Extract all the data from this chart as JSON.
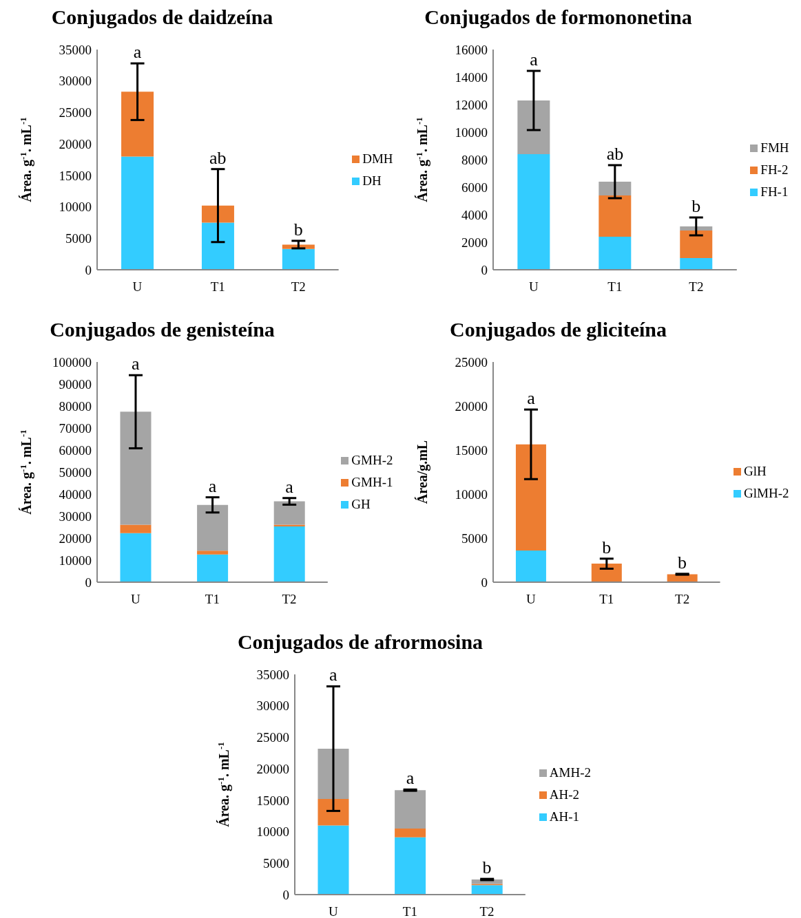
{
  "chart_data": [
    {
      "type": "bar",
      "title": "Conjugados de daidzeína",
      "ylabel": "Área. g$^{-1}$. mL$^{-1}$",
      "categories": [
        "U",
        "T1",
        "T2"
      ],
      "stacked": true,
      "legend": "right",
      "ylim": [
        0,
        35000
      ],
      "yticks": [
        0,
        5000,
        10000,
        15000,
        20000,
        25000,
        30000,
        35000
      ],
      "series": [
        {
          "name": "DH",
          "color": "#33ccff",
          "values": [
            18000,
            7500,
            3300
          ]
        },
        {
          "name": "DMH",
          "color": "#ed7d31",
          "values": [
            10300,
            2700,
            700
          ],
          "errors": [
            4500,
            5800,
            600
          ]
        }
      ],
      "annotations": [
        {
          "text": "a",
          "x": "U",
          "y": 32800
        },
        {
          "text": "ab",
          "x": "T1",
          "y": 16000
        },
        {
          "text": "b",
          "x": "T2",
          "y": 4550
        }
      ]
    },
    {
      "type": "bar",
      "title": "Conjugados de formononetina",
      "ylabel": "Área. g$^{-1}$. mL$^{-1}$",
      "categories": [
        "U",
        "T1",
        "T2"
      ],
      "stacked": true,
      "legend": "right",
      "ylim": [
        0,
        16000
      ],
      "yticks": [
        0,
        2000,
        4000,
        6000,
        8000,
        10000,
        12000,
        14000,
        16000
      ],
      "series": [
        {
          "name": "FH-1",
          "color": "#33ccff",
          "values": [
            8400,
            2400,
            850
          ]
        },
        {
          "name": "FH-2",
          "color": "#ed7d31",
          "values": [
            0,
            3000,
            2000
          ]
        },
        {
          "name": "FMH",
          "color": "#a5a5a5",
          "values": [
            3900,
            1000,
            300
          ],
          "errors": [
            2150,
            1200,
            650
          ]
        }
      ],
      "annotations": [
        {
          "text": "a",
          "x": "U",
          "y": 14450
        },
        {
          "text": "ab",
          "x": "T1",
          "y": 7600
        },
        {
          "text": "b",
          "x": "T2",
          "y": 3800
        }
      ]
    },
    {
      "type": "bar",
      "title": "Conjugados de genisteína",
      "ylabel": "Área. g$^{-1}$. mL$^{-1}$",
      "categories": [
        "U",
        "T1",
        "T2"
      ],
      "stacked": true,
      "legend": "right",
      "ylim": [
        0,
        100000
      ],
      "yticks": [
        0,
        10000,
        20000,
        30000,
        40000,
        50000,
        60000,
        70000,
        80000,
        90000,
        100000
      ],
      "series": [
        {
          "name": "GH",
          "color": "#33ccff",
          "values": [
            22300,
            12600,
            25300
          ]
        },
        {
          "name": "GMH-1",
          "color": "#ed7d31",
          "values": [
            3800,
            1700,
            800
          ]
        },
        {
          "name": "GMH-2",
          "color": "#a5a5a5",
          "values": [
            51300,
            20800,
            10600
          ],
          "errors": [
            16600,
            3450,
            1500
          ]
        }
      ],
      "annotations": [
        {
          "text": "a",
          "x": "U",
          "y": 94000
        },
        {
          "text": "a",
          "x": "T1",
          "y": 38550
        },
        {
          "text": "a",
          "x": "T2",
          "y": 38200
        }
      ]
    },
    {
      "type": "bar",
      "title": "Conjugados de gliciteína",
      "ylabel": "Área/g.mL",
      "categories": [
        "U",
        "T1",
        "T2"
      ],
      "stacked": true,
      "legend": "right",
      "ylim": [
        0,
        25000
      ],
      "yticks": [
        0,
        5000,
        10000,
        15000,
        20000,
        25000
      ],
      "series": [
        {
          "name": "GlMH-2",
          "color": "#33ccff",
          "values": [
            3600,
            null,
            null
          ]
        },
        {
          "name": "GlH",
          "color": "#ed7d31",
          "values": [
            12050,
            2100,
            900
          ],
          "errors": [
            3950,
            570,
            50
          ]
        }
      ],
      "annotations": [
        {
          "text": "a",
          "x": "U",
          "y": 19600
        },
        {
          "text": "b",
          "x": "T1",
          "y": 2670
        },
        {
          "text": "b",
          "x": "T2",
          "y": 950
        }
      ]
    },
    {
      "type": "bar",
      "title": "Conjugados de afrormosina",
      "ylabel": "Área. g$^{-1}$. mL$^{-1}$",
      "categories": [
        "U",
        "T1",
        "T2"
      ],
      "stacked": true,
      "legend": "right",
      "ylim": [
        0,
        35000
      ],
      "yticks": [
        0,
        5000,
        10000,
        15000,
        20000,
        25000,
        30000,
        35000
      ],
      "series": [
        {
          "name": "AH-1",
          "color": "#33ccff",
          "values": [
            11000,
            9100,
            1500
          ]
        },
        {
          "name": "AH-2",
          "color": "#ed7d31",
          "values": [
            4200,
            1400,
            200
          ]
        },
        {
          "name": "AMH-2",
          "color": "#a5a5a5",
          "values": [
            8000,
            6100,
            700
          ],
          "errors": [
            9900,
            100,
            100
          ]
        }
      ],
      "annotations": [
        {
          "text": "a",
          "x": "U",
          "y": 33100
        },
        {
          "text": "a",
          "x": "T1",
          "y": 16700
        },
        {
          "text": "b",
          "x": "T2",
          "y": 2500
        }
      ]
    }
  ]
}
